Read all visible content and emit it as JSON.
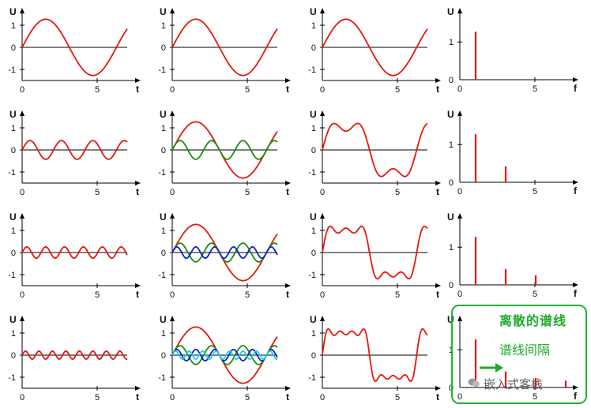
{
  "grid": {
    "rows": 4,
    "col_x_axis_label": [
      "t",
      "t",
      "t",
      "f"
    ]
  },
  "chart_data": [
    {
      "type": "line",
      "panel": "r1c1",
      "xlabel": "t",
      "ylabel": "U",
      "xlim": [
        0,
        8.5
      ],
      "ylim": [
        -1.6,
        1.6
      ],
      "x_ticks": [
        0,
        5
      ],
      "y_ticks": [
        1,
        0,
        -1
      ],
      "series": [
        {
          "color": "#e8160c",
          "harmonics": [
            {
              "k": 1,
              "amp": 1.273
            }
          ],
          "x_range": [
            0,
            7
          ],
          "values": "U(t)=1.273·sin(t)"
        }
      ]
    },
    {
      "type": "line",
      "panel": "r1c2",
      "xlabel": "t",
      "ylabel": "U",
      "xlim": [
        0,
        8.5
      ],
      "ylim": [
        -1.6,
        1.6
      ],
      "x_ticks": [
        0,
        5
      ],
      "y_ticks": [
        1,
        0,
        -1
      ],
      "series": [
        {
          "color": "#e8160c",
          "harmonics": [
            {
              "k": 1,
              "amp": 1.273
            }
          ],
          "x_range": [
            0,
            7
          ],
          "values": "U(t)=1.273·sin(t)"
        }
      ]
    },
    {
      "type": "line",
      "panel": "r1c3",
      "xlabel": "t",
      "ylabel": "U",
      "xlim": [
        0,
        8.5
      ],
      "ylim": [
        -1.6,
        1.6
      ],
      "x_ticks": [
        0,
        5
      ],
      "y_ticks": [
        1,
        0,
        -1
      ],
      "series": [
        {
          "color": "#e8160c",
          "harmonics": [
            {
              "k": 1,
              "amp": 1.273
            }
          ],
          "x_range": [
            0,
            7
          ],
          "values": "U(t)=1.273·sin(t)"
        }
      ]
    },
    {
      "type": "bar",
      "panel": "r1c4",
      "xlabel": "f",
      "ylabel": "U",
      "xlim": [
        0,
        8.5
      ],
      "ylim": [
        0,
        1.5
      ],
      "x_ticks": [
        0,
        5
      ],
      "y_ticks": [
        1,
        0
      ],
      "bars": [
        {
          "x": 1,
          "value": 1.273
        }
      ],
      "color": "#e8160c"
    },
    {
      "type": "line",
      "panel": "r2c1",
      "xlabel": "t",
      "ylabel": "U",
      "xlim": [
        0,
        8.5
      ],
      "ylim": [
        -1.6,
        1.6
      ],
      "x_ticks": [
        0,
        5
      ],
      "y_ticks": [
        1,
        0,
        -1
      ],
      "series": [
        {
          "color": "#e8160c",
          "harmonics": [
            {
              "k": 3,
              "amp": 0.424
            }
          ],
          "x_range": [
            0,
            7
          ],
          "values": "U(t)=0.424·sin(3t)"
        }
      ]
    },
    {
      "type": "line",
      "panel": "r2c2",
      "xlabel": "t",
      "ylabel": "U",
      "xlim": [
        0,
        8.5
      ],
      "ylim": [
        -1.6,
        1.6
      ],
      "x_ticks": [
        0,
        5
      ],
      "y_ticks": [
        1,
        0,
        -1
      ],
      "series": [
        {
          "color": "#e8160c",
          "harmonics": [
            {
              "k": 1,
              "amp": 1.273
            }
          ],
          "x_range": [
            0,
            7
          ]
        },
        {
          "color": "#1a8c10",
          "harmonics": [
            {
              "k": 3,
              "amp": 0.424
            }
          ],
          "x_range": [
            0,
            7
          ]
        }
      ]
    },
    {
      "type": "line",
      "panel": "r2c3",
      "xlabel": "t",
      "ylabel": "U",
      "xlim": [
        0,
        8.5
      ],
      "ylim": [
        -1.6,
        1.6
      ],
      "x_ticks": [
        0,
        5
      ],
      "y_ticks": [
        1,
        0,
        -1
      ],
      "series": [
        {
          "color": "#e8160c",
          "harmonics": [
            {
              "k": 1,
              "amp": 1.273
            },
            {
              "k": 3,
              "amp": 0.424
            }
          ],
          "x_range": [
            0,
            7
          ]
        }
      ]
    },
    {
      "type": "bar",
      "panel": "r2c4",
      "xlabel": "f",
      "ylabel": "U",
      "xlim": [
        0,
        8.5
      ],
      "ylim": [
        0,
        1.5
      ],
      "x_ticks": [
        0,
        5
      ],
      "y_ticks": [
        1,
        0
      ],
      "bars": [
        {
          "x": 1,
          "value": 1.273
        },
        {
          "x": 3,
          "value": 0.424
        }
      ],
      "color": "#e8160c"
    },
    {
      "type": "line",
      "panel": "r3c1",
      "xlabel": "t",
      "ylabel": "U",
      "xlim": [
        0,
        8.5
      ],
      "ylim": [
        -1.6,
        1.6
      ],
      "x_ticks": [
        0,
        5
      ],
      "y_ticks": [
        1,
        0,
        -1
      ],
      "series": [
        {
          "color": "#e8160c",
          "harmonics": [
            {
              "k": 5,
              "amp": 0.255
            }
          ],
          "x_range": [
            0,
            7
          ],
          "values": "U(t)=0.255·sin(5t)"
        }
      ]
    },
    {
      "type": "line",
      "panel": "r3c2",
      "xlabel": "t",
      "ylabel": "U",
      "xlim": [
        0,
        8.5
      ],
      "ylim": [
        -1.6,
        1.6
      ],
      "x_ticks": [
        0,
        5
      ],
      "y_ticks": [
        1,
        0,
        -1
      ],
      "series": [
        {
          "color": "#e8160c",
          "harmonics": [
            {
              "k": 1,
              "amp": 1.273
            }
          ],
          "x_range": [
            0,
            7
          ]
        },
        {
          "color": "#1a8c10",
          "harmonics": [
            {
              "k": 3,
              "amp": 0.424
            }
          ],
          "x_range": [
            0,
            7
          ]
        },
        {
          "color": "#1020c8",
          "harmonics": [
            {
              "k": 5,
              "amp": 0.255
            }
          ],
          "x_range": [
            0,
            7
          ]
        }
      ]
    },
    {
      "type": "line",
      "panel": "r3c3",
      "xlabel": "t",
      "ylabel": "U",
      "xlim": [
        0,
        8.5
      ],
      "ylim": [
        -1.6,
        1.6
      ],
      "x_ticks": [
        0,
        5
      ],
      "y_ticks": [
        1,
        0,
        -1
      ],
      "series": [
        {
          "color": "#e8160c",
          "harmonics": [
            {
              "k": 1,
              "amp": 1.273
            },
            {
              "k": 3,
              "amp": 0.424
            },
            {
              "k": 5,
              "amp": 0.255
            }
          ],
          "x_range": [
            0,
            7
          ]
        }
      ]
    },
    {
      "type": "bar",
      "panel": "r3c4",
      "xlabel": "f",
      "ylabel": "U",
      "xlim": [
        0,
        8.5
      ],
      "ylim": [
        0,
        1.5
      ],
      "x_ticks": [
        0,
        5
      ],
      "y_ticks": [
        1,
        0
      ],
      "bars": [
        {
          "x": 1,
          "value": 1.273
        },
        {
          "x": 3,
          "value": 0.424
        },
        {
          "x": 5,
          "value": 0.255
        }
      ],
      "color": "#e8160c"
    },
    {
      "type": "line",
      "panel": "r4c1",
      "xlabel": "t",
      "ylabel": "U",
      "xlim": [
        0,
        8.5
      ],
      "ylim": [
        -1.6,
        1.6
      ],
      "x_ticks": [
        0,
        5
      ],
      "y_ticks": [
        1,
        0,
        -1
      ],
      "series": [
        {
          "color": "#e8160c",
          "harmonics": [
            {
              "k": 7,
              "amp": 0.182
            }
          ],
          "x_range": [
            0,
            7
          ],
          "values": "U(t)=0.182·sin(7t)"
        }
      ]
    },
    {
      "type": "line",
      "panel": "r4c2",
      "xlabel": "t",
      "ylabel": "U",
      "xlim": [
        0,
        8.5
      ],
      "ylim": [
        -1.6,
        1.6
      ],
      "x_ticks": [
        0,
        5
      ],
      "y_ticks": [
        1,
        0,
        -1
      ],
      "series": [
        {
          "color": "#e8160c",
          "harmonics": [
            {
              "k": 1,
              "amp": 1.273
            }
          ],
          "x_range": [
            0,
            7
          ]
        },
        {
          "color": "#1a8c10",
          "harmonics": [
            {
              "k": 3,
              "amp": 0.424
            }
          ],
          "x_range": [
            0,
            7
          ]
        },
        {
          "color": "#1020c8",
          "harmonics": [
            {
              "k": 5,
              "amp": 0.255
            }
          ],
          "x_range": [
            0,
            7
          ]
        },
        {
          "color": "#18d0e8",
          "harmonics": [
            {
              "k": 7,
              "amp": 0.182
            }
          ],
          "x_range": [
            0,
            7
          ]
        }
      ]
    },
    {
      "type": "line",
      "panel": "r4c3",
      "xlabel": "t",
      "ylabel": "U",
      "xlim": [
        0,
        8.5
      ],
      "ylim": [
        -1.6,
        1.6
      ],
      "x_ticks": [
        0,
        5
      ],
      "y_ticks": [
        1,
        0,
        -1
      ],
      "series": [
        {
          "color": "#e8160c",
          "harmonics": [
            {
              "k": 1,
              "amp": 1.273
            },
            {
              "k": 3,
              "amp": 0.424
            },
            {
              "k": 5,
              "amp": 0.255
            },
            {
              "k": 7,
              "amp": 0.182
            }
          ],
          "x_range": [
            0,
            7
          ]
        }
      ]
    },
    {
      "type": "bar",
      "panel": "r4c4",
      "xlabel": "f",
      "ylabel": "U",
      "xlim": [
        0,
        8.5
      ],
      "ylim": [
        0,
        1.5
      ],
      "x_ticks": [
        0,
        5
      ],
      "y_ticks": [
        1,
        0
      ],
      "bars": [
        {
          "x": 1,
          "value": 1.273
        },
        {
          "x": 3,
          "value": 0.424
        },
        {
          "x": 5,
          "value": 0.255
        },
        {
          "x": 7,
          "value": 0.182
        }
      ],
      "color": "#e8160c"
    }
  ],
  "annotation": {
    "title": "离散的谱线",
    "label": "谱线间隔",
    "arrow_color": "#1faa2b",
    "border_color": "#27ae3a"
  },
  "watermark": {
    "text": "嵌入式客栈",
    "icon": "wechat-icon"
  }
}
